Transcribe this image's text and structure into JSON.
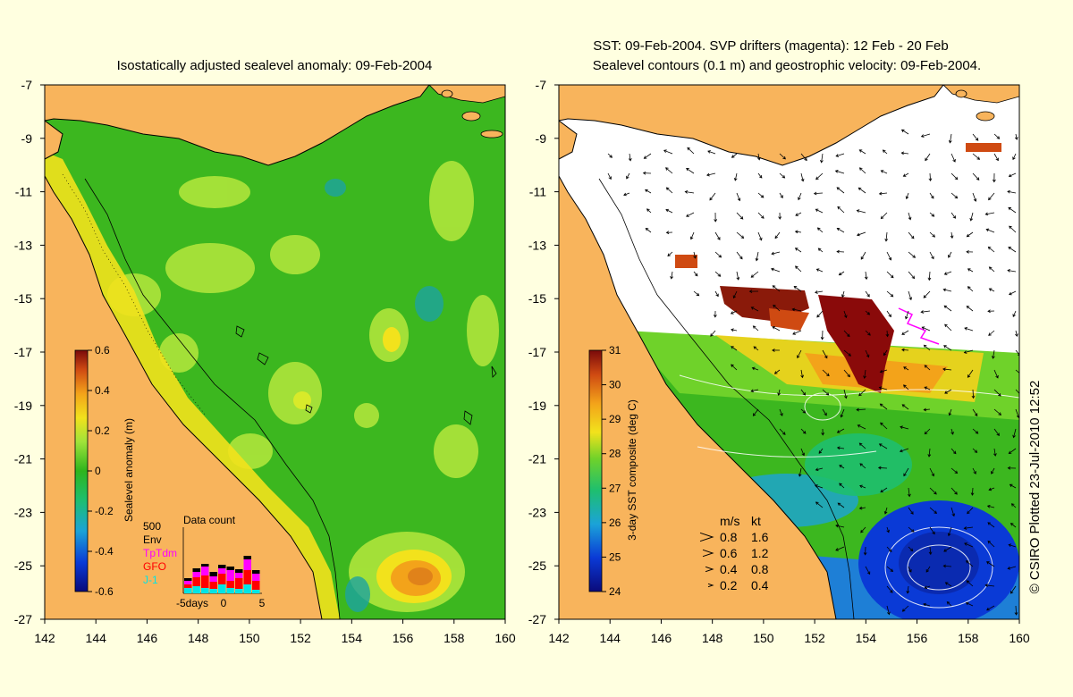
{
  "left_panel": {
    "title": "Isostatically adjusted sealevel anomaly: 09-Feb-2004",
    "colorbar": {
      "label": "Sealevel anomaly (m)",
      "ticks": [
        "0.6",
        "0.4",
        "0.2",
        "0",
        "-0.2",
        "-0.4",
        "-0.6"
      ],
      "values": [
        0.6,
        0.4,
        0.2,
        0,
        -0.2,
        -0.4,
        -0.6
      ],
      "range": [
        -0.6,
        0.6
      ]
    },
    "data_count": {
      "title": "Data count",
      "ymax_label": "500",
      "legend": [
        {
          "name": "Env",
          "color": "#000000"
        },
        {
          "name": "TpTdm",
          "color": "#ff00ff"
        },
        {
          "name": "GFO",
          "color": "#ff0000"
        },
        {
          "name": "J-1",
          "color": "#00e5e5"
        }
      ],
      "x_ticks": [
        "-5days",
        "0",
        "5"
      ]
    }
  },
  "right_panel": {
    "title_line1": "SST: 09-Feb-2004. SVP drifters (magenta): 12 Feb - 20 Feb",
    "title_line2": "Sealevel contours (0.1 m) and geostrophic velocity: 09-Feb-2004.",
    "colorbar": {
      "label": "3-day SST composite (deg C)",
      "ticks": [
        "31",
        "30",
        "29",
        "28",
        "27",
        "26",
        "25",
        "24"
      ],
      "values": [
        31,
        30,
        29,
        28,
        27,
        26,
        25,
        24
      ],
      "range": [
        24,
        31
      ]
    },
    "velocity_legend": {
      "header_ms": "m/s",
      "header_kt": "kt",
      "rows": [
        {
          "ms": "0.8",
          "kt": "1.6"
        },
        {
          "ms": "0.6",
          "kt": "1.2"
        },
        {
          "ms": "0.4",
          "kt": "0.8"
        },
        {
          "ms": "0.2",
          "kt": "0.4"
        }
      ]
    }
  },
  "axes": {
    "x_ticks": [
      "142",
      "144",
      "146",
      "148",
      "150",
      "152",
      "154",
      "156",
      "158",
      "160"
    ],
    "y_ticks": [
      "-7",
      "-9",
      "-11",
      "-13",
      "-15",
      "-17",
      "-19",
      "-21",
      "-23",
      "-25",
      "-27"
    ],
    "lon_range": [
      142,
      160
    ],
    "lat_range": [
      -27,
      -7
    ]
  },
  "credit": "© CSIRO Plotted 23-Jul-2010 12:52",
  "colors": {
    "background": "#ffffe0",
    "land": "#f8b45c",
    "ocean_mid": "#3cb71f",
    "ocean_light": "#a9e33a",
    "sst_cloud": "#ffffff",
    "drifter": "#ff00ff"
  }
}
